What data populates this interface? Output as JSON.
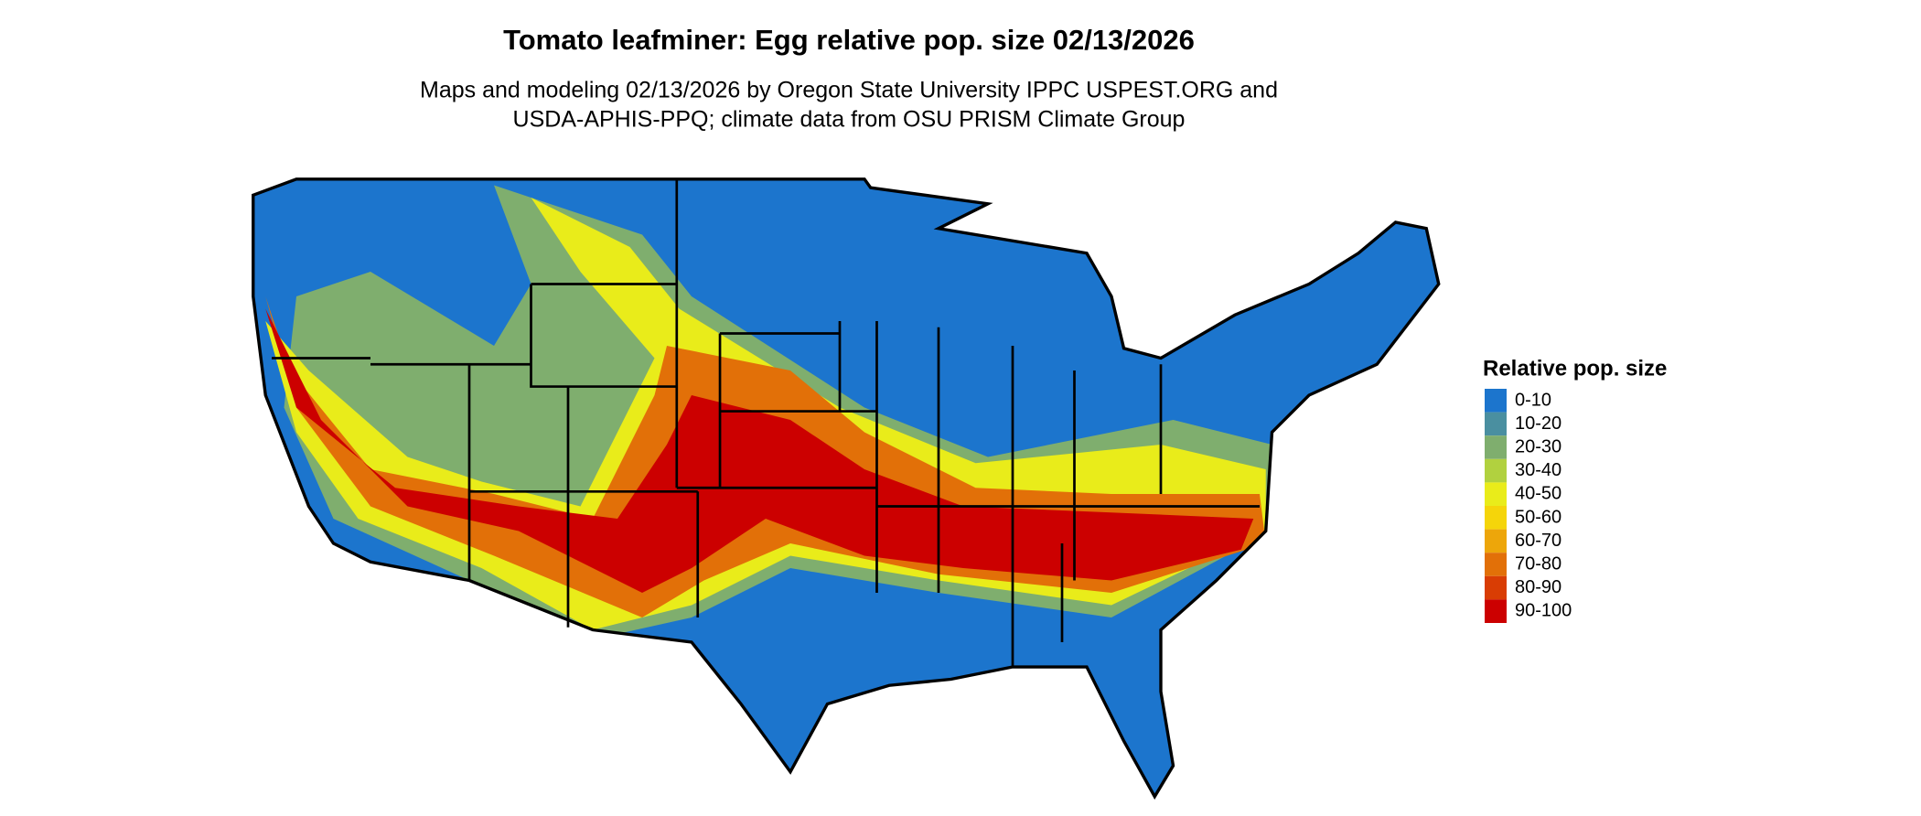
{
  "title": "Tomato leafminer: Egg relative pop. size 02/13/2026",
  "subtitle": [
    "Maps and modeling 02/13/2026 by Oregon State University IPPC USPEST.ORG and",
    "USDA-APHIS-PPQ; climate data from OSU PRISM Climate Group"
  ],
  "legend": {
    "title": "Relative pop. size",
    "items": [
      {
        "label": "0-10",
        "color": "#1c75cd"
      },
      {
        "label": "10-20",
        "color": "#4a8fa0"
      },
      {
        "label": "20-30",
        "color": "#7fae6e"
      },
      {
        "label": "30-40",
        "color": "#b1d13f"
      },
      {
        "label": "40-50",
        "color": "#e9ec1a"
      },
      {
        "label": "50-60",
        "color": "#f5d50a"
      },
      {
        "label": "60-70",
        "color": "#eda60a"
      },
      {
        "label": "70-80",
        "color": "#e27008"
      },
      {
        "label": "80-90",
        "color": "#d93d04"
      },
      {
        "label": "90-100",
        "color": "#cc0000"
      }
    ]
  }
}
